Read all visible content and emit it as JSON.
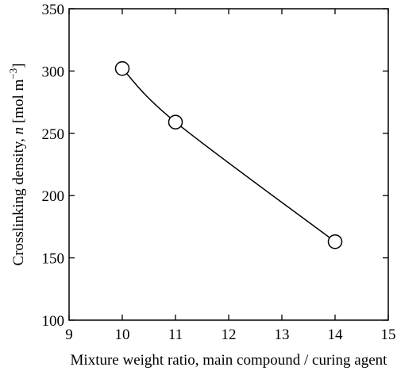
{
  "chart_data": {
    "type": "line",
    "title": "",
    "xlabel": "Mixture weight ratio, main compound / curing agent",
    "ylabel": "Crosslinking density, n [mol m−3]",
    "ylabel_parts": {
      "text": "Crosslinking density, ",
      "symbol": "n",
      "unit": " [mol m",
      "exponent": "−3",
      "close": "]"
    },
    "xlim": [
      9,
      15
    ],
    "ylim": [
      100,
      350
    ],
    "xticks": [
      9,
      10,
      11,
      12,
      13,
      14,
      15
    ],
    "yticks": [
      100,
      150,
      200,
      250,
      300,
      350
    ],
    "grid": false,
    "legend": "none",
    "series": [
      {
        "x": [
          10,
          11,
          14
        ],
        "y": [
          302,
          259,
          163
        ],
        "marker": "open-circle",
        "curve": "smooth"
      }
    ]
  }
}
